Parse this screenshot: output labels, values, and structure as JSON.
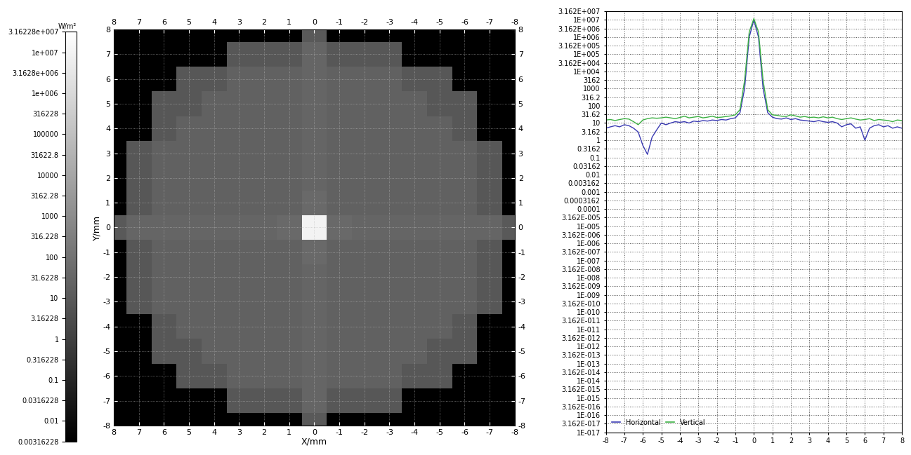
{
  "chart_data": [
    {
      "type": "heatmap",
      "xlabel": "X/mm",
      "ylabel": "Y/mm",
      "xlim": [
        8,
        -8
      ],
      "ylim": [
        -8,
        8
      ],
      "xticks": [
        8,
        7,
        6,
        5,
        4,
        3,
        2,
        1,
        0,
        -1,
        -2,
        -3,
        -4,
        -5,
        -6,
        -7,
        -8
      ],
      "yticks": [
        -8,
        -7,
        -6,
        -5,
        -4,
        -3,
        -2,
        -1,
        0,
        1,
        2,
        3,
        4,
        5,
        6,
        7,
        8
      ],
      "grid": true,
      "x": [
        -8,
        -7,
        -6,
        -5,
        -4,
        -3,
        -2,
        -1,
        0,
        1,
        2,
        3,
        4,
        5,
        6,
        7,
        8
      ],
      "y": [
        -8,
        -7,
        -6,
        -5,
        -4,
        -3,
        -2,
        -1,
        0,
        1,
        2,
        3,
        4,
        5,
        6,
        7,
        8
      ],
      "cells": [
        [
          0.00316228,
          0.00316228,
          0.00316228,
          0.00316228,
          0.00316228,
          0.00316228,
          0.00316228,
          0.00316228,
          10,
          0.00316228,
          0.00316228,
          0.00316228,
          0.00316228,
          0.00316228,
          0.00316228,
          0.00316228,
          0.00316228
        ],
        [
          0.00316228,
          0.00316228,
          0.00316228,
          0.00316228,
          0.00316228,
          8,
          8,
          8,
          30,
          8,
          8,
          8,
          0.00316228,
          0.00316228,
          0.00316228,
          0.00316228,
          0.00316228
        ],
        [
          0.00316228,
          0.00316228,
          0.00316228,
          8,
          8,
          20,
          20,
          20,
          30,
          20,
          20,
          20,
          8,
          8,
          0.00316228,
          0.00316228,
          0.00316228
        ],
        [
          0.00316228,
          0.00316228,
          8,
          8,
          20,
          20,
          20,
          20,
          30,
          20,
          20,
          20,
          20,
          8,
          8,
          0.00316228,
          0.00316228
        ],
        [
          0.00316228,
          0.00316228,
          8,
          20,
          20,
          20,
          20,
          20,
          30,
          20,
          20,
          20,
          20,
          20,
          8,
          0.00316228,
          0.00316228
        ],
        [
          0.00316228,
          8,
          20,
          20,
          20,
          20,
          20,
          20,
          30,
          20,
          20,
          20,
          20,
          20,
          20,
          8,
          0.00316228
        ],
        [
          0.00316228,
          8,
          20,
          20,
          20,
          20,
          20,
          20,
          30,
          20,
          20,
          20,
          20,
          20,
          20,
          8,
          0.00316228
        ],
        [
          0.00316228,
          8,
          20,
          20,
          20,
          20,
          20,
          20,
          40,
          20,
          20,
          20,
          20,
          20,
          20,
          8,
          0.00316228
        ],
        [
          10,
          30,
          30,
          30,
          30,
          30,
          30,
          40,
          10000000,
          40,
          30,
          30,
          30,
          30,
          30,
          30,
          10
        ],
        [
          0.00316228,
          8,
          20,
          20,
          20,
          20,
          20,
          20,
          40,
          20,
          20,
          20,
          20,
          20,
          20,
          8,
          0.00316228
        ],
        [
          0.00316228,
          8,
          20,
          20,
          20,
          20,
          20,
          20,
          30,
          20,
          20,
          20,
          20,
          20,
          20,
          8,
          0.00316228
        ],
        [
          0.00316228,
          8,
          20,
          20,
          20,
          20,
          20,
          20,
          30,
          20,
          20,
          20,
          20,
          20,
          20,
          8,
          0.00316228
        ],
        [
          0.00316228,
          0.00316228,
          8,
          20,
          20,
          20,
          20,
          20,
          30,
          20,
          20,
          20,
          20,
          20,
          8,
          0.00316228,
          0.00316228
        ],
        [
          0.00316228,
          0.00316228,
          8,
          8,
          20,
          20,
          20,
          20,
          30,
          20,
          20,
          20,
          20,
          8,
          8,
          0.00316228,
          0.00316228
        ],
        [
          0.00316228,
          0.00316228,
          0.00316228,
          8,
          8,
          20,
          20,
          20,
          30,
          20,
          20,
          20,
          8,
          8,
          0.00316228,
          0.00316228,
          0.00316228
        ],
        [
          0.00316228,
          0.00316228,
          0.00316228,
          0.00316228,
          0.00316228,
          8,
          8,
          8,
          30,
          8,
          8,
          8,
          0.00316228,
          0.00316228,
          0.00316228,
          0.00316228,
          0.00316228
        ],
        [
          0.00316228,
          0.00316228,
          0.00316228,
          0.00316228,
          0.00316228,
          0.00316228,
          0.00316228,
          0.00316228,
          10,
          0.00316228,
          0.00316228,
          0.00316228,
          0.00316228,
          0.00316228,
          0.00316228,
          0.00316228,
          0.00316228
        ]
      ],
      "colorbar_label": "W/m²",
      "colorbar_range": [
        0.00316228,
        31622800
      ],
      "colorbar_ticks": [
        {
          "value": 31622800,
          "label": "3.16228e+007"
        },
        {
          "value": 10000000,
          "label": "1e+007"
        },
        {
          "value": 3162800,
          "label": "3.1628e+006"
        },
        {
          "value": 1000000,
          "label": "1e+006"
        },
        316228,
        100000,
        31622.8,
        10000,
        3162.28,
        1000,
        316.228,
        100,
        31.6228,
        10,
        3.16228,
        1,
        0.316228,
        0.1,
        0.0316228,
        0.01,
        0.00316228
      ]
    },
    {
      "type": "line",
      "log": "y",
      "grid": true,
      "legend": "lower left",
      "xlim": [
        -8,
        8
      ],
      "xticks": [
        -8,
        -7,
        -6,
        -5,
        -4,
        -3,
        -2,
        -1,
        0,
        1,
        2,
        3,
        4,
        5,
        6,
        7,
        8
      ],
      "ylim": [
        1e-17,
        31620000
      ],
      "yticks": [
        {
          "value": 31620000,
          "label": "3.162E+007"
        },
        {
          "value": 10000000,
          "label": "1E+007"
        },
        {
          "value": 3162000,
          "label": "3.162E+006"
        },
        {
          "value": 1000000,
          "label": "1E+006"
        },
        {
          "value": 316200,
          "label": "3.162E+005"
        },
        {
          "value": 100000,
          "label": "1E+005"
        },
        {
          "value": 31620,
          "label": "3.162E+004"
        },
        {
          "value": 10000,
          "label": "1E+004"
        },
        3162,
        1000,
        316.2,
        100,
        31.62,
        10,
        3.162,
        1,
        0.3162,
        0.1,
        0.03162,
        0.01,
        0.003162,
        0.001,
        0.0003162,
        0.0001,
        {
          "value": 3.162e-05,
          "label": "3.162E-005"
        },
        {
          "value": 1e-05,
          "label": "1E-005"
        },
        {
          "value": 3.162e-06,
          "label": "3.162E-006"
        },
        {
          "value": 1e-06,
          "label": "1E-006"
        },
        {
          "value": 3.162e-07,
          "label": "3.162E-007"
        },
        {
          "value": 1e-07,
          "label": "1E-007"
        },
        {
          "value": 3.162e-08,
          "label": "3.162E-008"
        },
        {
          "value": 1e-08,
          "label": "1E-008"
        },
        {
          "value": 3.162e-09,
          "label": "3.162E-009"
        },
        {
          "value": 1e-09,
          "label": "1E-009"
        },
        {
          "value": 3.162e-10,
          "label": "3.162E-010"
        },
        {
          "value": 1e-10,
          "label": "1E-010"
        },
        {
          "value": 3.162e-11,
          "label": "3.162E-011"
        },
        {
          "value": 1e-11,
          "label": "1E-011"
        },
        {
          "value": 3.162e-12,
          "label": "3.162E-012"
        },
        {
          "value": 1e-12,
          "label": "1E-012"
        },
        {
          "value": 3.162e-13,
          "label": "3.162E-013"
        },
        {
          "value": 1e-13,
          "label": "1E-013"
        },
        {
          "value": 3.162e-14,
          "label": "3.162E-014"
        },
        {
          "value": 1e-14,
          "label": "1E-014"
        },
        {
          "value": 3.162e-15,
          "label": "3.162E-015"
        },
        {
          "value": 1e-15,
          "label": "1E-015"
        },
        {
          "value": 3.162e-16,
          "label": "3.162E-016"
        },
        {
          "value": 1e-16,
          "label": "1E-016"
        },
        {
          "value": 3.162e-17,
          "label": "3.162E-017"
        },
        {
          "value": 1e-17,
          "label": "1E-017"
        }
      ],
      "x": [
        -8,
        -7.75,
        -7.5,
        -7.25,
        -7,
        -6.75,
        -6.5,
        -6.25,
        -6,
        -5.75,
        -5.5,
        -5.25,
        -5,
        -4.75,
        -4.5,
        -4.25,
        -4,
        -3.75,
        -3.5,
        -3.25,
        -3,
        -2.75,
        -2.5,
        -2.25,
        -2,
        -1.75,
        -1.5,
        -1.25,
        -1,
        -0.75,
        -0.5,
        -0.25,
        0,
        0.25,
        0.5,
        0.75,
        1,
        1.25,
        1.5,
        1.75,
        2,
        2.25,
        2.5,
        2.75,
        3,
        3.25,
        3.5,
        3.75,
        4,
        4.25,
        4.5,
        4.75,
        5,
        5.25,
        5.5,
        5.75,
        6,
        6.25,
        6.5,
        6.75,
        7,
        7.25,
        7.5,
        7.75,
        8
      ],
      "series": [
        {
          "name": "Horizontal",
          "color": "#3b3bb3",
          "values": [
            5,
            6,
            7,
            6,
            8,
            7,
            5,
            3,
            0.5,
            0.15,
            1.5,
            4,
            10,
            8,
            10,
            12,
            11,
            12,
            10,
            13,
            12,
            14,
            13,
            15,
            14,
            16,
            15,
            18,
            20,
            40,
            1000,
            1000000,
            10000000,
            1000000,
            1000,
            40,
            22,
            18,
            17,
            20,
            16,
            18,
            15,
            14,
            13,
            12,
            14,
            12,
            11,
            12,
            10,
            6,
            8,
            9,
            5,
            6,
            1,
            5,
            7,
            8,
            6,
            7,
            5,
            6,
            5
          ]
        },
        {
          "name": "Vertical",
          "color": "#3cb043",
          "values": [
            15,
            16,
            14,
            16,
            18,
            17,
            12,
            8,
            15,
            18,
            20,
            19,
            20,
            22,
            20,
            18,
            21,
            25,
            20,
            22,
            24,
            20,
            22,
            25,
            21,
            22,
            24,
            26,
            30,
            60,
            3000,
            2000000,
            12000000,
            2000000,
            3000,
            60,
            30,
            28,
            25,
            24,
            30,
            26,
            22,
            24,
            21,
            22,
            20,
            23,
            20,
            22,
            18,
            16,
            18,
            20,
            17,
            15,
            16,
            18,
            14,
            16,
            15,
            14,
            12,
            15,
            14
          ]
        }
      ]
    }
  ]
}
